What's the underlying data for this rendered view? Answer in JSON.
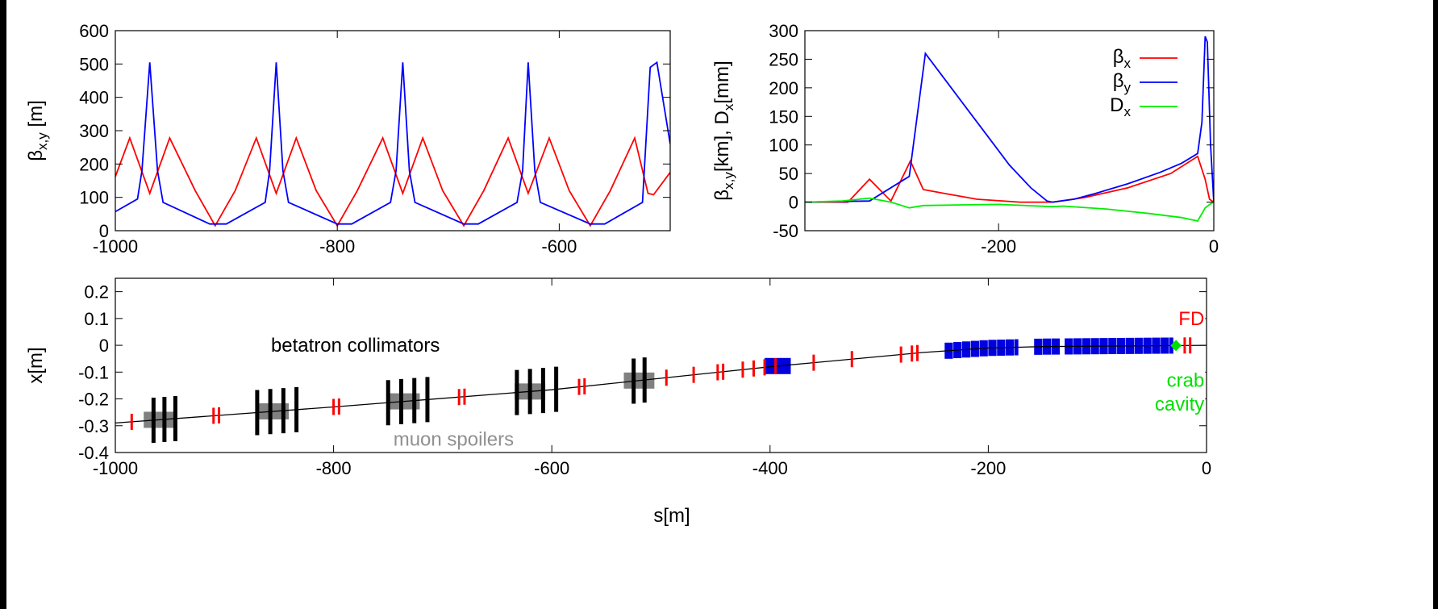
{
  "chart_data": [
    {
      "type": "line",
      "ylabel": {
        "main": "β",
        "sub": "x,y",
        "tail": " [m]"
      },
      "xlim": [
        -1000,
        -500
      ],
      "ylim": [
        0,
        600
      ],
      "x_ticks": [
        "-1000",
        "-800",
        "-600"
      ],
      "x_tick_values": [
        -1000,
        -800,
        -600
      ],
      "y_ticks": [
        "0",
        "100",
        "200",
        "300",
        "400",
        "500",
        "600"
      ],
      "y_tick_values": [
        0,
        100,
        200,
        300,
        400,
        500,
        600
      ],
      "series": [
        {
          "color": "#ff0000",
          "points": [
            [
              -1000,
              162
            ],
            [
              -987,
              278
            ],
            [
              -969,
              112
            ],
            [
              -951,
              278
            ],
            [
              -928,
              120
            ],
            [
              -910,
              15
            ],
            [
              -892,
              120
            ],
            [
              -873,
              278
            ],
            [
              -855,
              112
            ],
            [
              -837,
              278
            ],
            [
              -819,
              120
            ],
            [
              -800,
              15
            ],
            [
              -782,
              120
            ],
            [
              -759,
              278
            ],
            [
              -741,
              112
            ],
            [
              -723,
              278
            ],
            [
              -705,
              120
            ],
            [
              -686,
              15
            ],
            [
              -668,
              120
            ],
            [
              -646,
              278
            ],
            [
              -628,
              112
            ],
            [
              -609,
              278
            ],
            [
              -591,
              120
            ],
            [
              -572,
              15
            ],
            [
              -554,
              120
            ],
            [
              -532,
              278
            ],
            [
              -520,
              112
            ],
            [
              -515,
              108
            ],
            [
              -500,
              175
            ]
          ]
        },
        {
          "color": "#0000ff",
          "points": [
            [
              -1000,
              57
            ],
            [
              -980,
              95
            ],
            [
              -976,
              180
            ],
            [
              -969,
              505
            ],
            [
              -962,
              180
            ],
            [
              -957,
              85
            ],
            [
              -915,
              20
            ],
            [
              -900,
              20
            ],
            [
              -865,
              85
            ],
            [
              -861,
              180
            ],
            [
              -855,
              505
            ],
            [
              -849,
              180
            ],
            [
              -844,
              85
            ],
            [
              -800,
              20
            ],
            [
              -787,
              20
            ],
            [
              -752,
              85
            ],
            [
              -747,
              180
            ],
            [
              -741,
              505
            ],
            [
              -735,
              180
            ],
            [
              -730,
              85
            ],
            [
              -686,
              20
            ],
            [
              -673,
              20
            ],
            [
              -638,
              85
            ],
            [
              -633,
              180
            ],
            [
              -628,
              505
            ],
            [
              -622,
              180
            ],
            [
              -617,
              85
            ],
            [
              -572,
              20
            ],
            [
              -559,
              20
            ],
            [
              -525,
              85
            ],
            [
              -518,
              490
            ],
            [
              -512,
              505
            ],
            [
              -500,
              260
            ]
          ]
        }
      ]
    },
    {
      "type": "line",
      "ylabel": {
        "p1": "β",
        "s1": "x,y",
        "p2": "[km], D",
        "s2": "x",
        "p3": "[mm]"
      },
      "xlim": [
        -380,
        0
      ],
      "ylim": [
        -50,
        300
      ],
      "x_ticks": [
        "-200",
        "0"
      ],
      "x_tick_values": [
        -200,
        0
      ],
      "y_ticks": [
        "-50",
        "0",
        "50",
        "100",
        "150",
        "200",
        "250",
        "300"
      ],
      "y_tick_values": [
        -50,
        0,
        50,
        100,
        150,
        200,
        250,
        300
      ],
      "legend": {
        "position": "top-right",
        "items": [
          {
            "main": "β",
            "sub": "x",
            "color": "#ff0000"
          },
          {
            "main": "β",
            "sub": "y",
            "color": "#0000ff"
          },
          {
            "main": "D",
            "sub": "x",
            "color": "#00ee00"
          }
        ]
      },
      "series": [
        {
          "color": "#ff0000",
          "points": [
            [
              -380,
              0
            ],
            [
              -340,
              0
            ],
            [
              -320,
              40
            ],
            [
              -300,
              2
            ],
            [
              -282,
              72
            ],
            [
              -270,
              22
            ],
            [
              -250,
              15
            ],
            [
              -220,
              5
            ],
            [
              -180,
              0
            ],
            [
              -150,
              0
            ],
            [
              -120,
              8
            ],
            [
              -80,
              25
            ],
            [
              -40,
              50
            ],
            [
              -15,
              80
            ],
            [
              -8,
              40
            ],
            [
              -4,
              5
            ],
            [
              0,
              0
            ]
          ]
        },
        {
          "color": "#0000ff",
          "points": [
            [
              -380,
              0
            ],
            [
              -320,
              2
            ],
            [
              -283,
              45
            ],
            [
              -268,
              260
            ],
            [
              -250,
              215
            ],
            [
              -230,
              165
            ],
            [
              -210,
              115
            ],
            [
              -190,
              65
            ],
            [
              -170,
              25
            ],
            [
              -155,
              2
            ],
            [
              -150,
              0
            ],
            [
              -130,
              5
            ],
            [
              -110,
              15
            ],
            [
              -80,
              32
            ],
            [
              -50,
              52
            ],
            [
              -30,
              68
            ],
            [
              -15,
              85
            ],
            [
              -11,
              140
            ],
            [
              -8,
              290
            ],
            [
              -6,
              280
            ],
            [
              -3,
              100
            ],
            [
              0,
              0
            ]
          ]
        },
        {
          "color": "#00ee00",
          "points": [
            [
              -380,
              0
            ],
            [
              -345,
              2
            ],
            [
              -320,
              7
            ],
            [
              -300,
              0
            ],
            [
              -283,
              -10
            ],
            [
              -270,
              -6
            ],
            [
              -240,
              -5
            ],
            [
              -200,
              -4
            ],
            [
              -150,
              -8
            ],
            [
              -140,
              -7
            ],
            [
              -100,
              -12
            ],
            [
              -60,
              -20
            ],
            [
              -30,
              -27
            ],
            [
              -15,
              -33
            ],
            [
              -8,
              -10
            ],
            [
              -3,
              -3
            ],
            [
              0,
              0
            ]
          ]
        }
      ]
    },
    {
      "type": "scatter",
      "xlabel": "s[m]",
      "ylabel": "x[m]",
      "xlim": [
        -1000,
        0
      ],
      "ylim": [
        -0.4,
        0.25
      ],
      "x_ticks": [
        "-1000",
        "-800",
        "-600",
        "-400",
        "-200",
        "0"
      ],
      "x_tick_values": [
        -1000,
        -800,
        -600,
        -400,
        -200,
        0
      ],
      "y_ticks": [
        "0.2",
        "0.1",
        "0",
        "-0.1",
        "-0.2",
        "-0.3",
        "-0.4"
      ],
      "y_tick_values": [
        0.2,
        0.1,
        0,
        -0.1,
        -0.2,
        -0.3,
        -0.4
      ],
      "reference_line": [
        [
          -1000,
          -0.29
        ],
        [
          -800,
          -0.23
        ],
        [
          -600,
          -0.166
        ],
        [
          -400,
          -0.08
        ],
        [
          -260,
          -0.027
        ],
        [
          -200,
          -0.01
        ],
        [
          -150,
          -0.005
        ],
        [
          0,
          0
        ]
      ],
      "annotations": [
        {
          "text": "betatron collimators",
          "x": -780,
          "y": 0,
          "color": "#000000",
          "anchor": "middle"
        },
        {
          "text": "muon spoilers",
          "x": -690,
          "y": -0.35,
          "color": "#909090",
          "anchor": "middle"
        },
        {
          "text": "FD",
          "x": -2,
          "y": 0.1,
          "color": "#ff0000",
          "anchor": "end"
        },
        {
          "text": "crab",
          "x": -2,
          "y": -0.13,
          "color": "#00e000",
          "anchor": "end"
        },
        {
          "text": "cavity",
          "x": -2,
          "y": -0.22,
          "color": "#00e000",
          "anchor": "end"
        }
      ],
      "red_marks": [
        -985,
        -910,
        -905,
        -800,
        -795,
        -685,
        -680,
        -575,
        -570,
        -495,
        -470,
        -448,
        -443,
        -425,
        -415,
        -405,
        -395,
        -360,
        -325,
        -280,
        -270,
        -265,
        -20,
        -15
      ],
      "black_bars": [
        -965,
        -955,
        -945,
        -870,
        -858,
        -846,
        -834,
        -750,
        -738,
        -726,
        -714,
        -632,
        -620,
        -608,
        -596,
        -525,
        -515
      ],
      "gray_blocks": [
        -960,
        -855,
        -735,
        -620,
        -520
      ],
      "blue_blocks": [
        -393
      ],
      "blue_rows": [
        [
          -240,
          -172
        ],
        [
          -158,
          -134
        ],
        [
          -130,
          -30
        ]
      ],
      "crab_cavity": -28
    }
  ]
}
